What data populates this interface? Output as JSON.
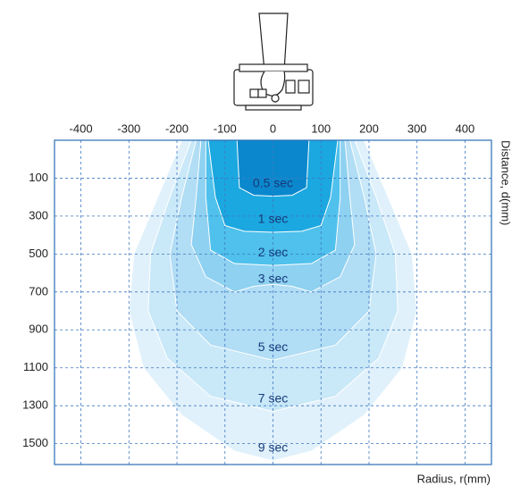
{
  "chart_data": {
    "type": "contour",
    "x_label": "Radius, r(mm)",
    "y_label": "Distance, d(mm)",
    "xlim": [
      -455,
      455
    ],
    "ylim": [
      -100,
      1610
    ],
    "xticks": [
      -400,
      -300,
      -200,
      -100,
      0,
      100,
      200,
      300,
      400
    ],
    "yticks": [
      100,
      300,
      500,
      700,
      900,
      1100,
      1300,
      1500
    ],
    "grid": true,
    "series": [
      {
        "name": "9 sec",
        "color": "#e0f1fb",
        "x": [
          -190,
          -240,
          -290,
          -300,
          -270,
          -190,
          -80,
          0,
          80,
          190,
          270,
          300,
          290,
          240,
          190
        ],
        "y": [
          -100,
          200,
          500,
          800,
          1100,
          1350,
          1540,
          1590,
          1540,
          1350,
          1100,
          800,
          500,
          200,
          -100
        ]
      },
      {
        "name": "7 sec",
        "color": "#c9e8f8",
        "x": [
          -170,
          -215,
          -255,
          -260,
          -220,
          -130,
          0,
          130,
          220,
          260,
          255,
          215,
          170
        ],
        "y": [
          -100,
          200,
          500,
          800,
          1050,
          1250,
          1330,
          1250,
          1050,
          800,
          500,
          200,
          -100
        ]
      },
      {
        "name": "5 sec",
        "color": "#b1ddf5",
        "x": [
          -160,
          -190,
          -215,
          -200,
          -130,
          0,
          130,
          200,
          215,
          190,
          160
        ],
        "y": [
          -100,
          200,
          500,
          800,
          980,
          1060,
          980,
          800,
          500,
          200,
          -100
        ]
      },
      {
        "name": "3 sec",
        "color": "#8ed1f1",
        "x": [
          -150,
          -160,
          -170,
          -140,
          -80,
          -40,
          0,
          40,
          80,
          140,
          170,
          160,
          150
        ],
        "y": [
          -100,
          200,
          450,
          620,
          700,
          670,
          660,
          670,
          700,
          620,
          450,
          200,
          -100
        ]
      },
      {
        "name": "2 sec",
        "color": "#4fc1ec",
        "x": [
          -140,
          -140,
          -130,
          -80,
          0,
          80,
          130,
          140,
          140
        ],
        "y": [
          -100,
          200,
          480,
          550,
          560,
          550,
          480,
          200,
          -100
        ]
      },
      {
        "name": "1 sec",
        "color": "#1ba7df",
        "x": [
          -135,
          -120,
          -100,
          -60,
          0,
          60,
          100,
          120,
          135
        ],
        "y": [
          -100,
          200,
          350,
          380,
          385,
          380,
          350,
          200,
          -100
        ]
      },
      {
        "name": "0.5 sec",
        "color": "#0b88cd",
        "x": [
          -75,
          -70,
          -40,
          0,
          40,
          70,
          75
        ],
        "y": [
          -100,
          150,
          190,
          195,
          190,
          150,
          -100
        ]
      }
    ]
  }
}
